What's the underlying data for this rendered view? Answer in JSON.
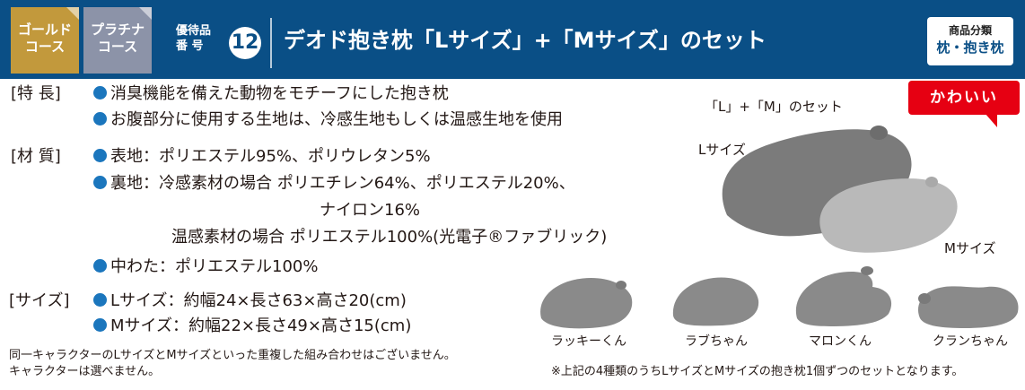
{
  "header": {
    "course_gold_line1": "ゴールド",
    "course_gold_line2": "コース",
    "course_platinum_line1": "プラチナ",
    "course_platinum_line2": "コース",
    "item_number_label_line1": "優待品",
    "item_number_label_line2": "番 号",
    "item_number": "12",
    "title": "デオド抱き枕「Lサイズ」+「Mサイズ」のセット",
    "category_label": "商品分類",
    "category_value": "枕・抱き枕"
  },
  "specs": {
    "feature_label": "[特 長]",
    "feature_1": "消臭機能を備えた動物をモチーフにした抱き枕",
    "feature_2": "お腹部分に使用する生地は、冷感生地もしくは温感生地を使用",
    "material_label": "[材 質]",
    "material_outer": "表地：ポリエステル95%、ポリウレタン5%",
    "material_back_line1": "裏地：冷感素材の場合 ポリエチレン64%、ポリエステル20%、",
    "material_back_line2": "ナイロン16%",
    "material_back_line3": "温感素材の場合 ポリエステル100%(光電子®ファブリック)",
    "material_filling": "中わた：ポリエステル100%",
    "size_label": "[サイズ]",
    "size_l": "Lサイズ：約幅24×長さ63×高さ20(cm)",
    "size_m": "Mサイズ：約幅22×長さ49×高さ15(cm)"
  },
  "notes": {
    "note_1": "同一キャラクターのLサイズとMサイズといった重複した組み合わせはございません。",
    "note_2": "キャラクターは選べません。",
    "note_3": "※上記の4種類のうちLサイズとMサイズの抱き枕1個ずつのセットとなります。"
  },
  "photo": {
    "badge": "かわいい",
    "set_label": "「L」+「M」のセット",
    "l_label": "Lサイズ",
    "m_label": "Mサイズ"
  },
  "characters": [
    {
      "name": "ラッキーくん"
    },
    {
      "name": "ラブちゃん"
    },
    {
      "name": "マロンくん"
    },
    {
      "name": "クランちゃん"
    }
  ],
  "colors": {
    "header_bg": "#0a4f86",
    "gold": "#c2993c",
    "platinum": "#8c93a8",
    "bullet": "#1b76bd",
    "badge_red": "#e60012",
    "pillow_dark": "#7b7b7b",
    "pillow_light": "#b9b9b9"
  }
}
